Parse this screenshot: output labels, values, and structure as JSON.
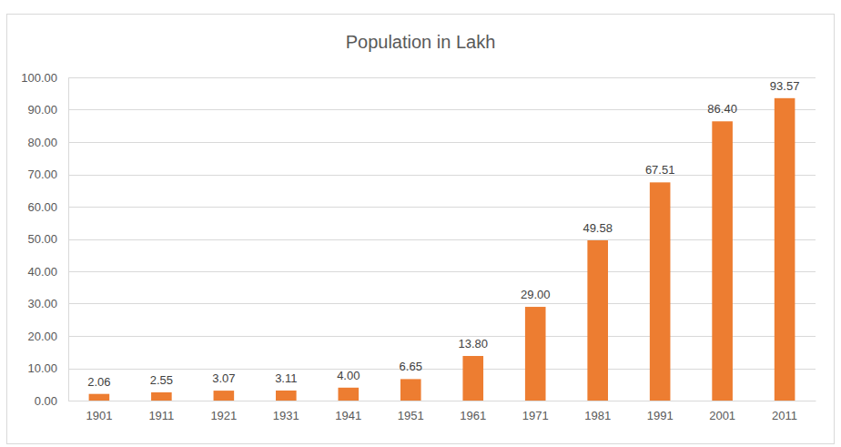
{
  "chart_data": {
    "type": "bar",
    "title": "Population in Lakh",
    "categories": [
      "1901",
      "1911",
      "1921",
      "1931",
      "1941",
      "1951",
      "1961",
      "1971",
      "1981",
      "1991",
      "2001",
      "2011"
    ],
    "values": [
      2.06,
      2.55,
      3.07,
      3.11,
      4.0,
      6.65,
      13.8,
      29.0,
      49.58,
      67.51,
      86.4,
      93.57
    ],
    "value_labels": [
      "2.06",
      "2.55",
      "3.07",
      "3.11",
      "4.00",
      "6.65",
      "13.80",
      "29.00",
      "49.58",
      "67.51",
      "86.40",
      "93.57"
    ],
    "color": "#ed7d31",
    "ylim": [
      0,
      100
    ],
    "yticks": [
      {
        "value": 0,
        "label": "0.00"
      },
      {
        "value": 10,
        "label": "10.00"
      },
      {
        "value": 20,
        "label": "20.00"
      },
      {
        "value": 30,
        "label": "30.00"
      },
      {
        "value": 40,
        "label": "40.00"
      },
      {
        "value": 50,
        "label": "50.00"
      },
      {
        "value": 60,
        "label": "60.00"
      },
      {
        "value": 70,
        "label": "70.00"
      },
      {
        "value": 80,
        "label": "80.00"
      },
      {
        "value": 90,
        "label": "90.00"
      },
      {
        "value": 100,
        "label": "100.00"
      }
    ],
    "grid": true,
    "data_labels": true
  }
}
